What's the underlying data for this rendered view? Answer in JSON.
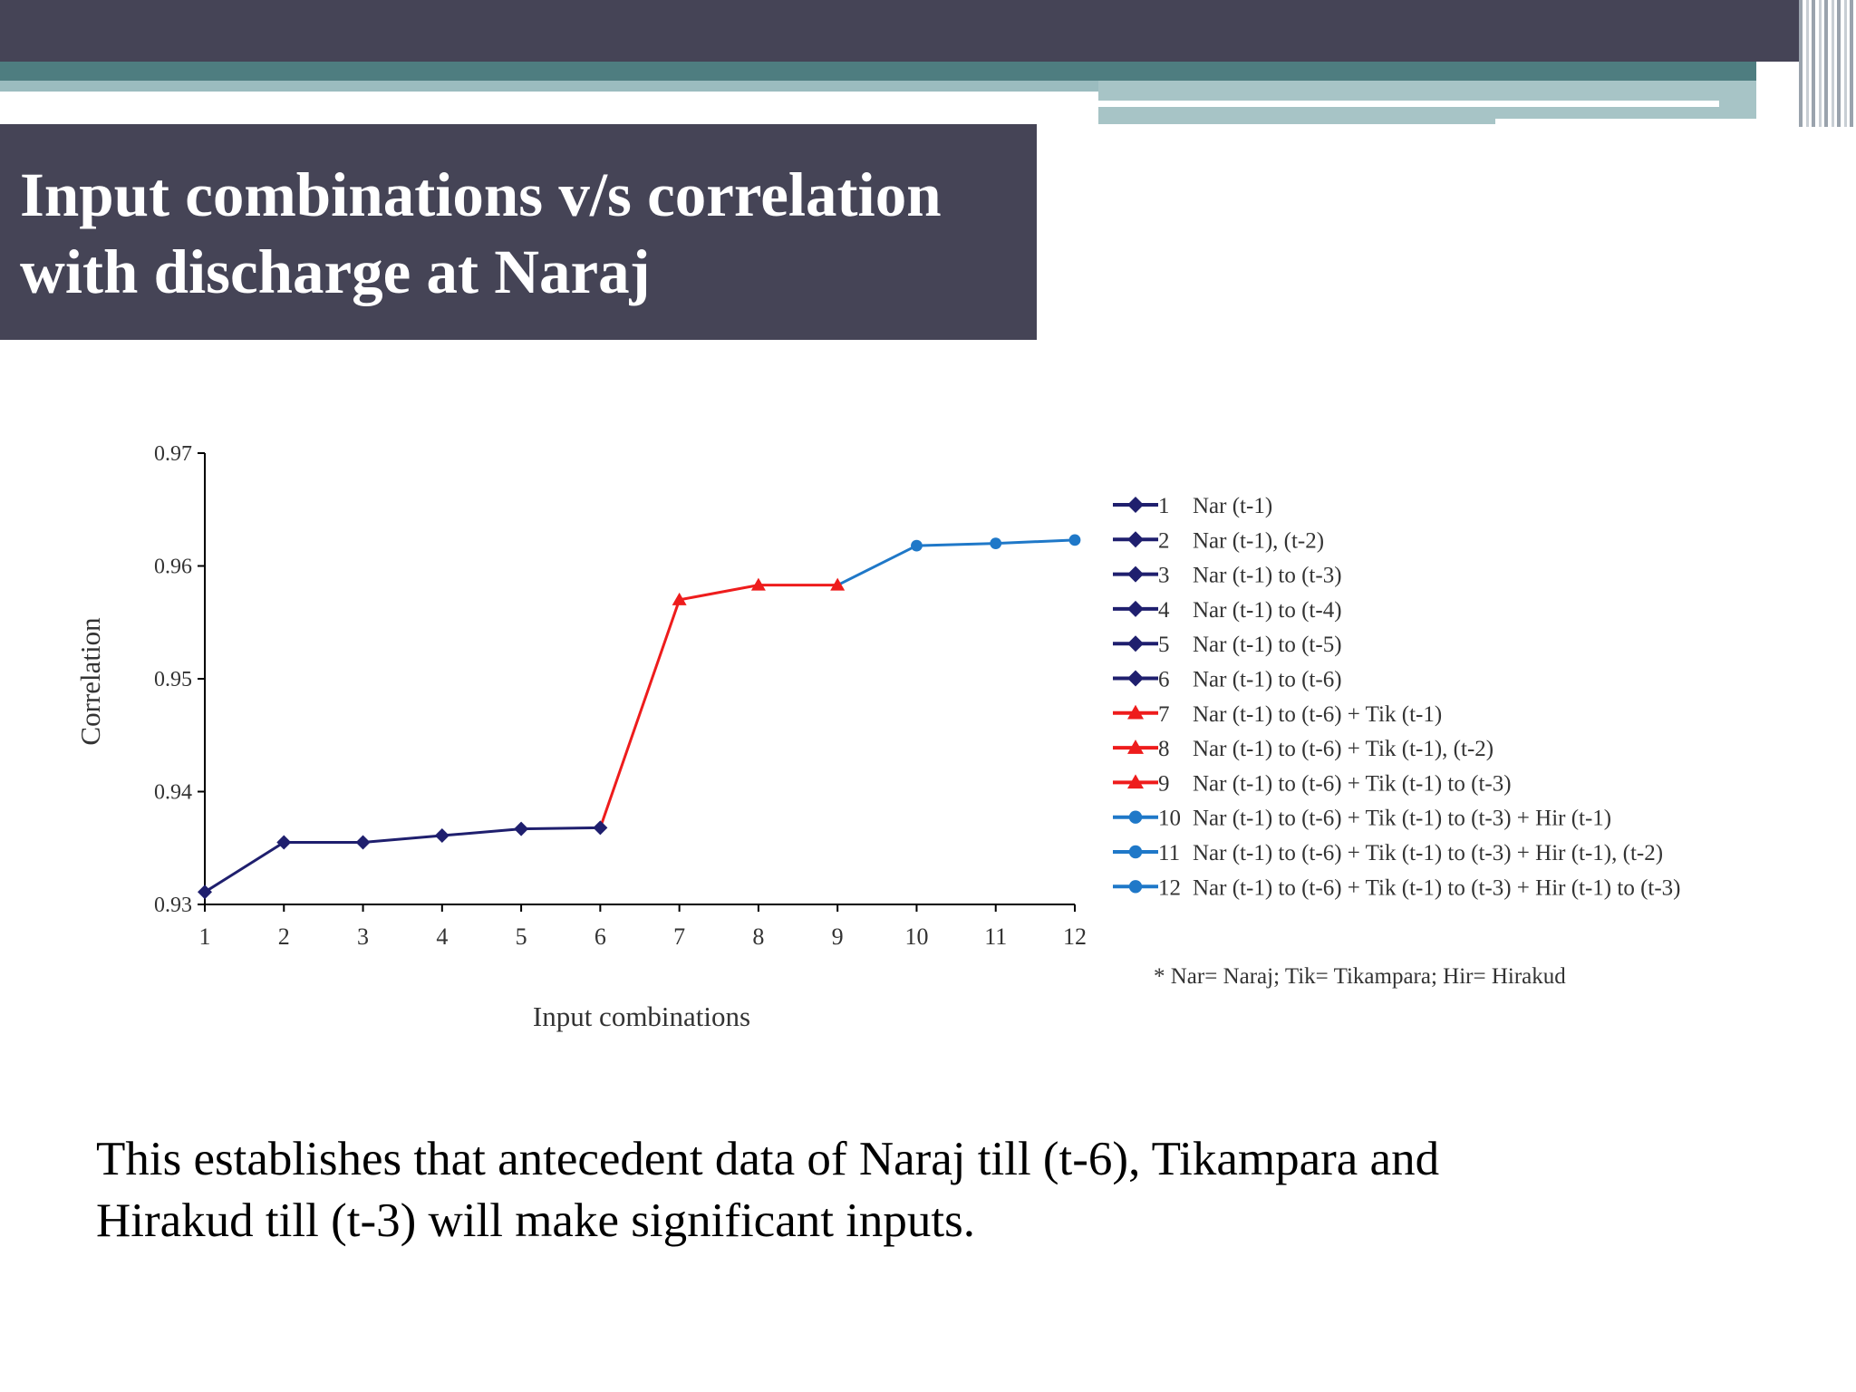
{
  "slide": {
    "title_line1": "Input combinations v/s correlation",
    "title_line2": "with discharge at Naraj",
    "body_line1": "This establishes that antecedent data of Naraj till (t-6), Tikampara and",
    "body_line2": "Hirakud till (t-3)  will make significant inputs."
  },
  "colors": {
    "header": "#454456",
    "teal": "#4e7d80",
    "series_navy": "#1f1f6e",
    "series_red": "#ee1c1c",
    "series_blue": "#1f78c8"
  },
  "chart_data": {
    "type": "line",
    "xlabel": "Input combinations",
    "ylabel": "Correlation",
    "ylim": [
      0.93,
      0.97
    ],
    "yticks": [
      "0.97",
      "0.96",
      "0.95",
      "0.94",
      "0.93"
    ],
    "categories": [
      "1",
      "2",
      "3",
      "4",
      "5",
      "6",
      "7",
      "8",
      "9",
      "10",
      "11",
      "12"
    ],
    "series": [
      {
        "color": "#1f1f6e",
        "marker": "diamond",
        "points": [
          [
            1,
            0.9311
          ],
          [
            2,
            0.9355
          ],
          [
            3,
            0.9355
          ],
          [
            4,
            0.9361
          ],
          [
            5,
            0.9367
          ],
          [
            6,
            0.9368
          ]
        ]
      },
      {
        "color": "#ee1c1c",
        "marker": "triangle",
        "points": [
          [
            6,
            0.9368
          ],
          [
            7,
            0.957
          ],
          [
            8,
            0.9583
          ],
          [
            9,
            0.9583
          ]
        ]
      },
      {
        "color": "#1f78c8",
        "marker": "circle",
        "points": [
          [
            9,
            0.9583
          ],
          [
            10,
            0.9618
          ],
          [
            11,
            0.962
          ],
          [
            12,
            0.9623
          ]
        ]
      }
    ],
    "legend": [
      {
        "num": "1",
        "label": "Nar (t-1)",
        "color": "#1f1f6e",
        "marker": "diamond"
      },
      {
        "num": "2",
        "label": "Nar (t-1), (t-2)",
        "color": "#1f1f6e",
        "marker": "diamond"
      },
      {
        "num": "3",
        "label": "Nar (t-1) to (t-3)",
        "color": "#1f1f6e",
        "marker": "diamond"
      },
      {
        "num": "4",
        "label": "Nar (t-1) to (t-4)",
        "color": "#1f1f6e",
        "marker": "diamond"
      },
      {
        "num": "5",
        "label": "Nar (t-1) to (t-5)",
        "color": "#1f1f6e",
        "marker": "diamond"
      },
      {
        "num": "6",
        "label": "Nar (t-1) to (t-6)",
        "color": "#1f1f6e",
        "marker": "diamond"
      },
      {
        "num": "7",
        "label": "Nar (t-1) to (t-6) + Tik (t-1)",
        "color": "#ee1c1c",
        "marker": "triangle"
      },
      {
        "num": "8",
        "label": "Nar (t-1) to (t-6) + Tik (t-1), (t-2)",
        "color": "#ee1c1c",
        "marker": "triangle"
      },
      {
        "num": "9",
        "label": "Nar (t-1) to (t-6) + Tik (t-1) to (t-3)",
        "color": "#ee1c1c",
        "marker": "triangle"
      },
      {
        "num": "10",
        "label": "Nar (t-1) to (t-6) + Tik (t-1) to (t-3) + Hir (t-1)",
        "color": "#1f78c8",
        "marker": "circle"
      },
      {
        "num": "11",
        "label": "Nar (t-1) to (t-6) + Tik (t-1) to (t-3) + Hir (t-1), (t-2)",
        "color": "#1f78c8",
        "marker": "circle"
      },
      {
        "num": "12",
        "label": "Nar (t-1) to (t-6) + Tik (t-1) to (t-3) + Hir (t-1) to (t-3)",
        "color": "#1f78c8",
        "marker": "circle"
      }
    ],
    "legend_position": "right",
    "footnote": "* Nar= Naraj; Tik= Tikampara; Hir= Hirakud"
  }
}
